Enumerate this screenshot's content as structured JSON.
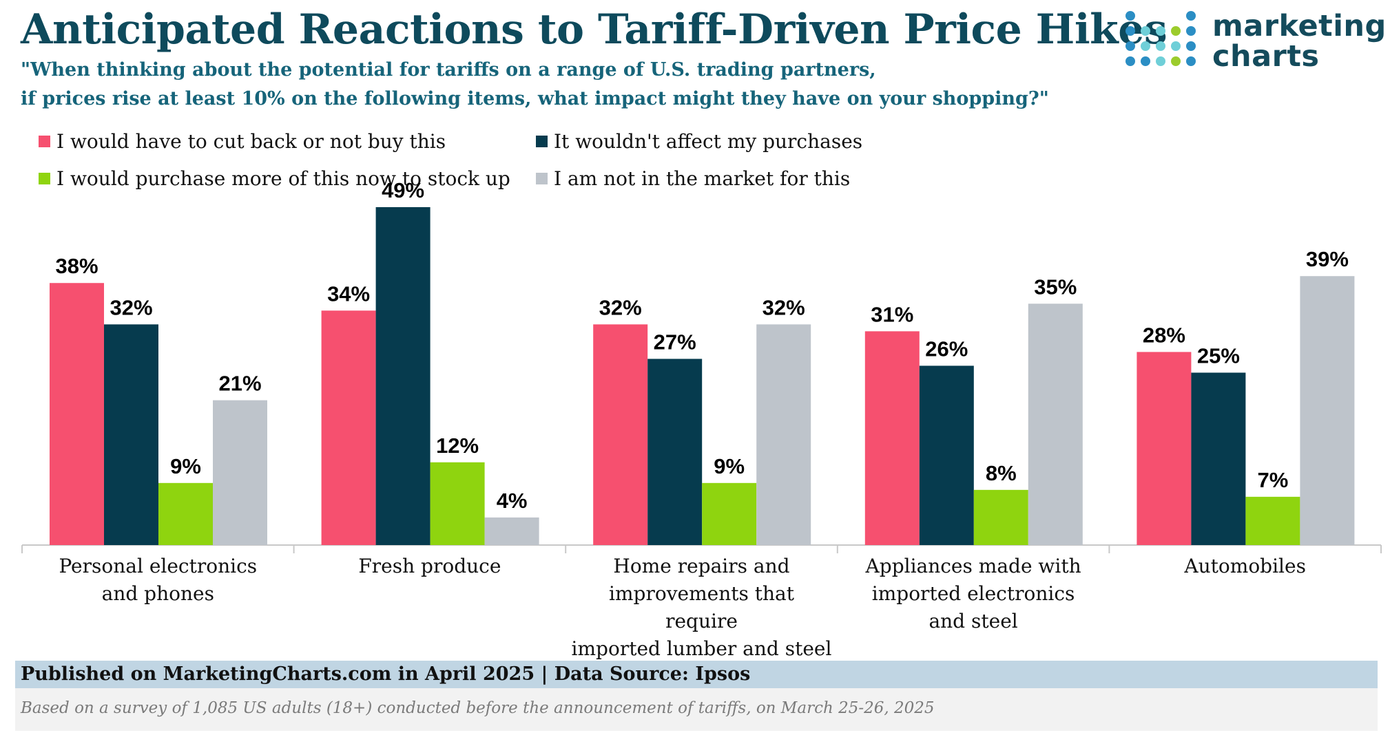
{
  "header": {
    "title": "Anticipated Reactions to Tariff-Driven Price Hikes",
    "subtitle_line1": "\"When thinking about the potential for tariffs on a range of U.S. trading partners,",
    "subtitle_line2": "if prices rise at least 10% on the following items, what impact might they have on your shopping?\""
  },
  "logo": {
    "line1": "marketing",
    "line2": "charts",
    "colors": [
      "#2b8ec4",
      "#6fcfd8",
      "#9ccc2c"
    ]
  },
  "chart_data": {
    "type": "bar",
    "title": "Anticipated Reactions to Tariff-Driven Price Hikes",
    "xlabel": "",
    "ylabel": "",
    "ylim": [
      0,
      55
    ],
    "grid": false,
    "legend_position": "top-left",
    "categories": [
      "Personal electronics\nand phones",
      "Fresh produce",
      "Home repairs and\nimprovements that require\nimported lumber and steel",
      "Appliances made with\nimported electronics\nand steel",
      "Automobiles"
    ],
    "series": [
      {
        "name": "I would have to cut back or not buy this",
        "color": "#f6506f",
        "values": [
          38,
          34,
          32,
          31,
          28
        ],
        "labels": [
          "38%",
          "34%",
          "32%",
          "31%",
          "28%"
        ]
      },
      {
        "name": "It wouldn't affect my purchases",
        "color": "#063b4e",
        "values": [
          32,
          49,
          27,
          26,
          25
        ],
        "labels": [
          "32%",
          "49%",
          "27%",
          "26%",
          "25%"
        ]
      },
      {
        "name": "I would purchase more of this now to stock up",
        "color": "#8fd40f",
        "values": [
          9,
          12,
          9,
          8,
          7
        ],
        "labels": [
          "9%",
          "12%",
          "9%",
          "8%",
          "7%"
        ]
      },
      {
        "name": "I am not in the market for this",
        "color": "#bec4cb",
        "values": [
          21,
          4,
          32,
          35,
          39
        ],
        "labels": [
          "21%",
          "4%",
          "32%",
          "35%",
          "39%"
        ]
      }
    ]
  },
  "footer": {
    "publication": "Published on MarketingCharts.com in April 2025 | Data Source: Ipsos",
    "note": "Based on a survey of 1,085 US adults (18+) conducted before the announcement of tariffs, on March 25-26, 2025"
  }
}
